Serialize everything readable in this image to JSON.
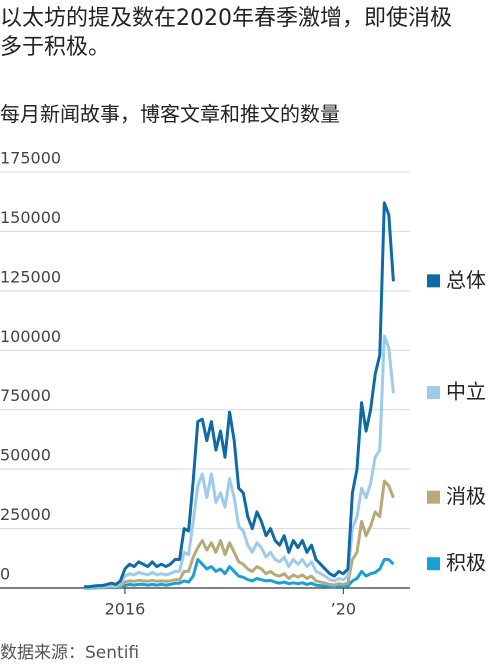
{
  "chart_data": {
    "type": "line",
    "title": "以太坊的提及数在2020年春季激增，即使消极多于积极。",
    "subtitle": "每月新闻故事，博客文章和推文的数量",
    "source": "数据来源：Sentifi",
    "categories": [
      null,
      null,
      null,
      null,
      null,
      null,
      null,
      null,
      null,
      "2016",
      null,
      null,
      null,
      null,
      null,
      null,
      null,
      null,
      null,
      null,
      null,
      null,
      null,
      null,
      null,
      null,
      null,
      null,
      null,
      null,
      null,
      null,
      null,
      null,
      null,
      null,
      null,
      null,
      null,
      null,
      null,
      null,
      null,
      null,
      null,
      null,
      null,
      null,
      null,
      null,
      null,
      null,
      null,
      null,
      null,
      null,
      null,
      "’20",
      null,
      null,
      null,
      null,
      null,
      null,
      null,
      null,
      null,
      null,
      null
    ],
    "series": [
      {
        "name": "总体",
        "color": "#0f6aa6",
        "values": [
          500,
          500,
          800,
          1000,
          1000,
          1500,
          2000,
          1500,
          3000,
          8000,
          10000,
          9000,
          11000,
          10000,
          9000,
          11000,
          9000,
          10000,
          9000,
          10000,
          12000,
          12000,
          25000,
          24000,
          45000,
          70000,
          71000,
          62000,
          70000,
          58000,
          66000,
          55000,
          74000,
          62000,
          42000,
          40000,
          30000,
          25000,
          32000,
          28000,
          22000,
          25000,
          20000,
          18000,
          22000,
          15000,
          20000,
          17000,
          20000,
          15000,
          18000,
          12000,
          10000,
          8000,
          6000,
          5000,
          7000,
          6000,
          8000,
          40000,
          50000,
          78000,
          66000,
          75000,
          90000,
          98000,
          162000,
          157000,
          129000
        ]
      },
      {
        "name": "中立",
        "color": "#9dcbec",
        "values": [
          300,
          300,
          500,
          600,
          600,
          900,
          1200,
          900,
          1800,
          5000,
          6000,
          5500,
          6500,
          6000,
          5500,
          6500,
          5500,
          6000,
          5500,
          6000,
          7000,
          7000,
          15000,
          14000,
          28000,
          43000,
          48000,
          38000,
          48000,
          36000,
          40000,
          34000,
          46000,
          38000,
          26000,
          24000,
          18000,
          15000,
          19000,
          17000,
          13000,
          15000,
          12000,
          11000,
          13000,
          9000,
          12000,
          10000,
          12000,
          9000,
          11000,
          7000,
          6000,
          5000,
          3500,
          3000,
          4000,
          3500,
          5000,
          25000,
          30000,
          42000,
          38000,
          44000,
          55000,
          58000,
          106000,
          101000,
          82000
        ]
      },
      {
        "name": "消极",
        "color": "#b8a978",
        "values": [
          200,
          200,
          300,
          300,
          300,
          500,
          600,
          500,
          900,
          2500,
          3000,
          2800,
          3200,
          3000,
          2800,
          3200,
          2800,
          3000,
          2800,
          3000,
          3500,
          3500,
          7000,
          7000,
          13000,
          17000,
          20000,
          16000,
          19000,
          15000,
          20000,
          14000,
          19000,
          15000,
          11000,
          10000,
          8000,
          7000,
          9000,
          8000,
          6000,
          7000,
          5500,
          5000,
          6000,
          4000,
          5500,
          4500,
          5500,
          4000,
          5000,
          3000,
          2500,
          2000,
          1500,
          1200,
          1800,
          1500,
          2000,
          12000,
          15000,
          28000,
          22000,
          26000,
          32000,
          30000,
          45000,
          43000,
          38000
        ]
      },
      {
        "name": "积极",
        "color": "#1a9fd6",
        "values": [
          0,
          0,
          0,
          100,
          100,
          200,
          200,
          100,
          300,
          1000,
          1500,
          1200,
          1500,
          1500,
          1200,
          1500,
          1200,
          1500,
          1200,
          1500,
          2000,
          2000,
          3000,
          2500,
          5000,
          12000,
          10000,
          8000,
          9000,
          7000,
          8000,
          6000,
          9000,
          7000,
          5000,
          4500,
          3500,
          3000,
          4000,
          3500,
          3000,
          3200,
          2500,
          2000,
          2500,
          1800,
          2200,
          1800,
          2200,
          1500,
          2000,
          1200,
          1000,
          800,
          600,
          500,
          700,
          600,
          800,
          3000,
          4000,
          7000,
          5000,
          6000,
          6500,
          8000,
          12000,
          12000,
          10000
        ]
      }
    ],
    "ylim": [
      0,
      175000
    ],
    "yticks": [
      0,
      25000,
      50000,
      75000,
      100000,
      125000,
      150000,
      175000
    ],
    "grid": true
  }
}
